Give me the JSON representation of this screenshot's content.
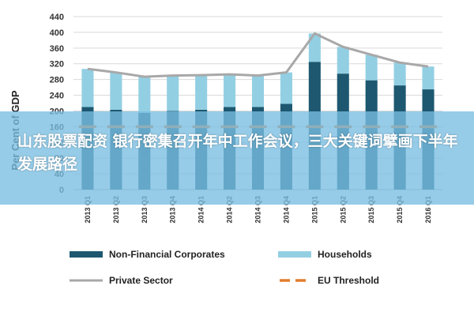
{
  "chart_data": {
    "type": "bar",
    "ylabel": "Per Cent of GDP",
    "ylim": [
      0,
      440
    ],
    "yticks": [
      0,
      40,
      80,
      120,
      160,
      200,
      240,
      280,
      320,
      360,
      400,
      440
    ],
    "categories": [
      "2013 Q1",
      "2013 Q2",
      "2013 Q3",
      "2013 Q4",
      "2014 Q1",
      "2014 Q2",
      "2014 Q3",
      "2014 Q4",
      "2015 Q1",
      "2015 Q2",
      "2015 Q3",
      "2015 Q4",
      "2016 Q1"
    ],
    "series": [
      {
        "name": "Non-Financial Corporates",
        "kind": "stacked-bar",
        "color": "#1d5870",
        "values": [
          210,
          203,
          195,
          200,
          203,
          210,
          210,
          218,
          325,
          295,
          278,
          265,
          255
        ]
      },
      {
        "name": "Households",
        "kind": "stacked-bar",
        "color": "#93cfe3",
        "values": [
          97,
          95,
          92,
          90,
          88,
          83,
          80,
          80,
          72,
          68,
          65,
          58,
          58
        ]
      },
      {
        "name": "Private Sector",
        "kind": "line",
        "color": "#a8a8a8",
        "values": [
          307,
          298,
          287,
          290,
          291,
          293,
          290,
          298,
          397,
          363,
          343,
          323,
          313
        ]
      },
      {
        "name": "EU Threshold",
        "kind": "dashed-line",
        "color": "#e27d2d",
        "values": [
          160,
          160,
          160,
          160,
          160,
          160,
          160,
          160,
          160,
          160,
          160,
          160,
          160
        ]
      }
    ],
    "legend_position": "bottom",
    "grid": true
  },
  "banner": {
    "text": "山东股票配资 银行密集召开年中工作会议，三大关键词擘画下半年发展路径"
  }
}
